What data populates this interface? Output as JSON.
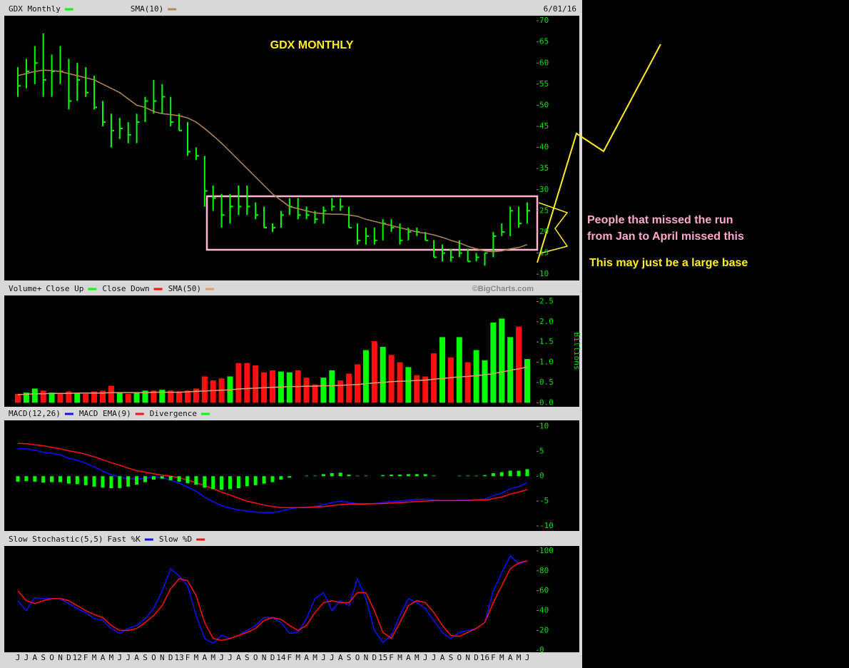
{
  "chart_data": [
    {
      "type": "hlc",
      "title": "GDX MONTHLY",
      "date": "6/01/16",
      "ylim": [
        8.5,
        71.2
      ],
      "yticks": [
        10,
        15,
        20,
        25,
        30,
        35,
        40,
        45,
        50,
        55,
        60,
        65,
        70
      ],
      "series": [
        {
          "name": "GDX Monthly",
          "color": "#00ff00",
          "high": [
            59,
            61,
            64,
            67,
            62,
            64,
            61,
            60,
            59,
            57,
            51,
            48,
            47,
            46,
            48,
            52,
            56,
            55,
            52,
            48,
            46,
            40,
            38,
            31,
            29,
            29,
            31,
            31,
            27,
            26,
            22,
            25,
            28,
            28,
            26,
            25,
            26,
            28,
            28,
            26,
            22,
            21,
            21,
            23,
            23,
            22,
            21,
            21,
            20,
            18,
            17,
            16,
            18,
            16,
            15,
            15,
            20,
            22,
            26,
            26,
            27
          ],
          "low": [
            52,
            54,
            55,
            52,
            52,
            55,
            49,
            51,
            52,
            49,
            45,
            40,
            42,
            41,
            41,
            46,
            48,
            48,
            45,
            44,
            38,
            37,
            26,
            25,
            21,
            22,
            24,
            24,
            23,
            21,
            20,
            21,
            24,
            23,
            23,
            22,
            22,
            25,
            25,
            21,
            17,
            17,
            17,
            18,
            20,
            17,
            18,
            19,
            18,
            14,
            13,
            13,
            14,
            13,
            13,
            12,
            14,
            19,
            19,
            21,
            22
          ],
          "close": [
            54.6,
            58,
            60,
            56,
            58,
            58,
            51,
            56,
            53,
            49.5,
            46,
            44,
            44.5,
            43,
            46,
            51,
            51,
            52,
            46,
            44,
            39,
            38,
            29.7,
            28,
            24,
            26,
            26,
            26,
            24,
            21,
            21,
            24,
            26,
            24,
            24,
            23,
            25,
            26,
            26,
            21,
            18,
            19,
            18,
            22,
            21,
            18,
            20,
            20,
            18,
            14,
            15,
            14,
            15,
            13,
            14,
            15,
            19,
            20,
            25,
            22,
            25
          ]
        },
        {
          "name": "SMA(10)",
          "color": "#b08850",
          "style": "line",
          "values": [
            57,
            57.5,
            58,
            58.3,
            58.2,
            58,
            57.5,
            57,
            56.5,
            56,
            55,
            54,
            53,
            51.5,
            50,
            49.5,
            48.5,
            48,
            47.8,
            47.5,
            47,
            46,
            44.5,
            42.8,
            41,
            39,
            37,
            35,
            33,
            31,
            29,
            27.5,
            26,
            25.5,
            25,
            24.5,
            24.3,
            24.2,
            24.2,
            24,
            23.7,
            23,
            22.5,
            22,
            21.5,
            21,
            20.5,
            20,
            19.7,
            19.3,
            18.7,
            18,
            17.4,
            16.6,
            16,
            15.5,
            15.3,
            15.5,
            16,
            16.3,
            17
          ]
        }
      ]
    },
    {
      "type": "bar",
      "title": "Volume+",
      "credit": "©BigCharts.com",
      "y_label": "Billions",
      "ylim": [
        -0.1,
        2.65
      ],
      "yticks": [
        {
          "value": 0,
          "label": "0.0"
        },
        0.5,
        {
          "value": 1,
          "label": "1.0"
        },
        1.5,
        {
          "value": 2,
          "label": "2.0"
        },
        2.5
      ],
      "series": [
        {
          "name": "Close Up",
          "color": "#00ff00",
          "style": "bar",
          "values": [
            null,
            0.25,
            0.35,
            null,
            0.25,
            null,
            null,
            0.25,
            null,
            null,
            null,
            null,
            0.25,
            null,
            0.25,
            0.3,
            null,
            0.32,
            null,
            null,
            null,
            null,
            null,
            null,
            null,
            0.65,
            null,
            null,
            null,
            null,
            null,
            0.77,
            0.75,
            null,
            null,
            null,
            0.62,
            0.8,
            null,
            null,
            null,
            1.3,
            null,
            1.38,
            null,
            null,
            0.88,
            null,
            null,
            null,
            1.62,
            null,
            1.62,
            null,
            1.3,
            1.05,
            1.98,
            2.08,
            1.62,
            null,
            1.08
          ]
        },
        {
          "name": "Close Down",
          "color": "#ff1010",
          "style": "bar",
          "values": [
            0.22,
            null,
            null,
            0.3,
            null,
            0.22,
            0.28,
            null,
            0.22,
            0.28,
            0.3,
            0.42,
            null,
            0.22,
            null,
            null,
            0.3,
            null,
            0.3,
            0.28,
            0.3,
            0.35,
            0.65,
            0.55,
            0.6,
            null,
            0.98,
            0.98,
            0.92,
            0.75,
            0.8,
            null,
            null,
            0.8,
            0.62,
            0.45,
            null,
            null,
            0.55,
            0.72,
            0.95,
            null,
            1.52,
            null,
            1.18,
            1,
            null,
            0.68,
            0.65,
            1.22,
            null,
            1.12,
            null,
            1,
            null,
            null,
            null,
            null,
            null,
            1.88,
            null
          ]
        },
        {
          "name": "SMA(50)",
          "color": "#e0a070",
          "style": "line",
          "values": [
            0.2,
            0.21,
            0.22,
            0.22,
            0.23,
            0.23,
            0.23,
            0.24,
            0.24,
            0.24,
            0.24,
            0.25,
            0.25,
            0.25,
            0.25,
            0.25,
            0.26,
            0.26,
            0.26,
            0.26,
            0.27,
            0.28,
            0.29,
            0.3,
            0.31,
            0.32,
            0.34,
            0.35,
            0.36,
            0.37,
            0.38,
            0.39,
            0.4,
            0.4,
            0.41,
            0.41,
            0.42,
            0.42,
            0.43,
            0.44,
            0.45,
            0.47,
            0.49,
            0.5,
            0.52,
            0.53,
            0.54,
            0.55,
            0.56,
            0.58,
            0.6,
            0.62,
            0.64,
            0.65,
            0.67,
            0.69,
            0.72,
            0.76,
            0.8,
            0.84,
            0.88
          ]
        }
      ]
    },
    {
      "type": "line",
      "ylim": [
        -11,
        11.2
      ],
      "yticks": [
        10,
        5,
        0,
        -5,
        -10
      ],
      "series": [
        {
          "name": "MACD(12,26)",
          "color": "#1010ff",
          "style": "line",
          "values": [
            5.5,
            5.5,
            5.2,
            4.8,
            4.6,
            4.3,
            3.6,
            3.2,
            2.6,
            1.8,
            1,
            0.3,
            -0.2,
            -0.5,
            -0.6,
            -0.4,
            -0.2,
            -0.3,
            -0.8,
            -1.4,
            -2.2,
            -3,
            -4.2,
            -5.1,
            -5.9,
            -6.4,
            -6.8,
            -7,
            -7.2,
            -7.3,
            -7.3,
            -7,
            -6.6,
            -6.3,
            -6.2,
            -6.1,
            -5.7,
            -5.3,
            -5,
            -5.3,
            -5.5,
            -5.5,
            -5.5,
            -5.3,
            -5.1,
            -5,
            -4.8,
            -4.7,
            -4.6,
            -4.8,
            -4.9,
            -4.9,
            -4.8,
            -4.8,
            -4.7,
            -4.6,
            -3.9,
            -3.4,
            -2.5,
            -2.1,
            -1.3
          ]
        },
        {
          "name": "MACD EMA(9)",
          "color": "#ff1010",
          "style": "line",
          "values": [
            6.6,
            6.5,
            6.3,
            6.1,
            5.8,
            5.5,
            5.1,
            4.8,
            4.4,
            3.9,
            3.3,
            2.7,
            2.2,
            1.6,
            1.1,
            0.8,
            0.5,
            0.2,
            0,
            -0.3,
            -0.8,
            -1.3,
            -1.9,
            -2.5,
            -3.2,
            -3.8,
            -4.4,
            -5,
            -5.4,
            -5.8,
            -6.1,
            -6.3,
            -6.3,
            -6.3,
            -6.3,
            -6.2,
            -6.1,
            -5.9,
            -5.7,
            -5.6,
            -5.6,
            -5.6,
            -5.5,
            -5.5,
            -5.4,
            -5.3,
            -5.2,
            -5.1,
            -5,
            -4.9,
            -4.9,
            -4.9,
            -4.9,
            -4.9,
            -4.8,
            -4.8,
            -4.5,
            -4.2,
            -3.6,
            -3.2,
            -2.7
          ]
        },
        {
          "name": "Divergence",
          "color": "#00ff00",
          "style": "bar",
          "values": [
            -1.1,
            -1,
            -1.1,
            -1.3,
            -1.2,
            -1.2,
            -1.5,
            -1.6,
            -1.8,
            -2.1,
            -2.3,
            -2.4,
            -2.4,
            -2.1,
            -1.7,
            -1.2,
            -0.7,
            -0.5,
            -0.8,
            -1.1,
            -1.4,
            -1.7,
            -2.3,
            -2.6,
            -2.7,
            -2.6,
            -2.4,
            -2,
            -1.8,
            -1.5,
            -1.2,
            -0.7,
            -0.3,
            0,
            0.1,
            0.1,
            0.4,
            0.6,
            0.7,
            0.3,
            0.1,
            0.1,
            0,
            0.2,
            0.3,
            0.3,
            0.4,
            0.4,
            0.4,
            0.1,
            0,
            0,
            0.1,
            0.1,
            0.1,
            0.2,
            0.6,
            0.8,
            1.1,
            1.1,
            1.4
          ]
        }
      ]
    },
    {
      "type": "line",
      "title": "Slow Stochastic(5,5)",
      "ylim": [
        -2,
        105
      ],
      "yticks": [
        0,
        20,
        40,
        60,
        80,
        100
      ],
      "categories": [
        "J",
        "J",
        "A",
        "S",
        "O",
        "N",
        "D",
        "12",
        "F",
        "M",
        "A",
        "M",
        "J",
        "J",
        "A",
        "S",
        "O",
        "N",
        "D",
        "13",
        "F",
        "M",
        "A",
        "M",
        "J",
        "J",
        "A",
        "S",
        "O",
        "N",
        "D",
        "14",
        "F",
        "M",
        "A",
        "M",
        "J",
        "J",
        "A",
        "S",
        "O",
        "N",
        "D",
        "15",
        "F",
        "M",
        "A",
        "M",
        "J",
        "J",
        "A",
        "S",
        "O",
        "N",
        "D",
        "16",
        "F",
        "M",
        "A",
        "M",
        "J"
      ],
      "series": [
        {
          "name": "Fast %K",
          "color": "#1010ff",
          "style": "line",
          "values": [
            50,
            40,
            53,
            52,
            52,
            52,
            47,
            42,
            38,
            32,
            30,
            22,
            17,
            22,
            25,
            32,
            42,
            60,
            82,
            75,
            65,
            35,
            12,
            7,
            15,
            12,
            15,
            20,
            25,
            33,
            33,
            28,
            17,
            18,
            32,
            52,
            58,
            40,
            50,
            45,
            72,
            52,
            20,
            8,
            15,
            35,
            52,
            48,
            42,
            30,
            18,
            12,
            18,
            20,
            22,
            28,
            60,
            78,
            95,
            87,
            90
          ]
        },
        {
          "name": "Slow %D",
          "color": "#ff1010",
          "style": "line",
          "values": [
            60,
            50,
            47,
            50,
            52,
            52,
            50,
            45,
            40,
            36,
            33,
            25,
            20,
            20,
            22,
            28,
            35,
            45,
            62,
            72,
            70,
            55,
            28,
            12,
            10,
            12,
            15,
            18,
            22,
            30,
            33,
            31,
            25,
            20,
            25,
            38,
            48,
            50,
            48,
            48,
            58,
            58,
            40,
            18,
            12,
            28,
            45,
            50,
            48,
            38,
            25,
            15,
            14,
            18,
            22,
            28,
            48,
            65,
            82,
            88,
            90
          ]
        }
      ]
    }
  ],
  "annotations": [
    "People that missed the run",
    "from Jan to April missed this",
    "This may just be a large base"
  ]
}
